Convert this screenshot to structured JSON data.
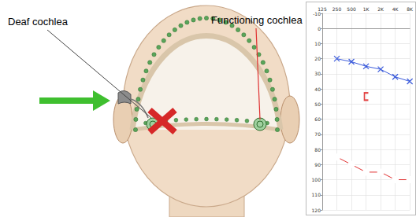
{
  "labels": {
    "left": "Deaf cochlea",
    "right": "Functioning cochlea"
  },
  "chart_data": {
    "type": "line",
    "categories": [
      "125",
      "250",
      "500",
      "1K",
      "2K",
      "4K",
      "8K"
    ],
    "ylim": [
      -10,
      120
    ],
    "yticks": [
      -10,
      0,
      10,
      20,
      30,
      40,
      50,
      60,
      70,
      80,
      90,
      100,
      110,
      120
    ],
    "grid": true,
    "series": [
      {
        "color": "#3b5bdb",
        "marker": "x",
        "line_style": "solid",
        "values": [
          null,
          20,
          22,
          25,
          27,
          32,
          35
        ]
      },
      {
        "color": "#e03131",
        "marker": "circle",
        "line_style": "solid",
        "values": [
          null,
          85,
          90,
          95,
          95,
          100,
          100
        ]
      },
      {
        "type": "scatter",
        "color": "#e03131",
        "marker": "bracket",
        "values": [
          null,
          null,
          null,
          45,
          null,
          null,
          null
        ]
      }
    ]
  }
}
